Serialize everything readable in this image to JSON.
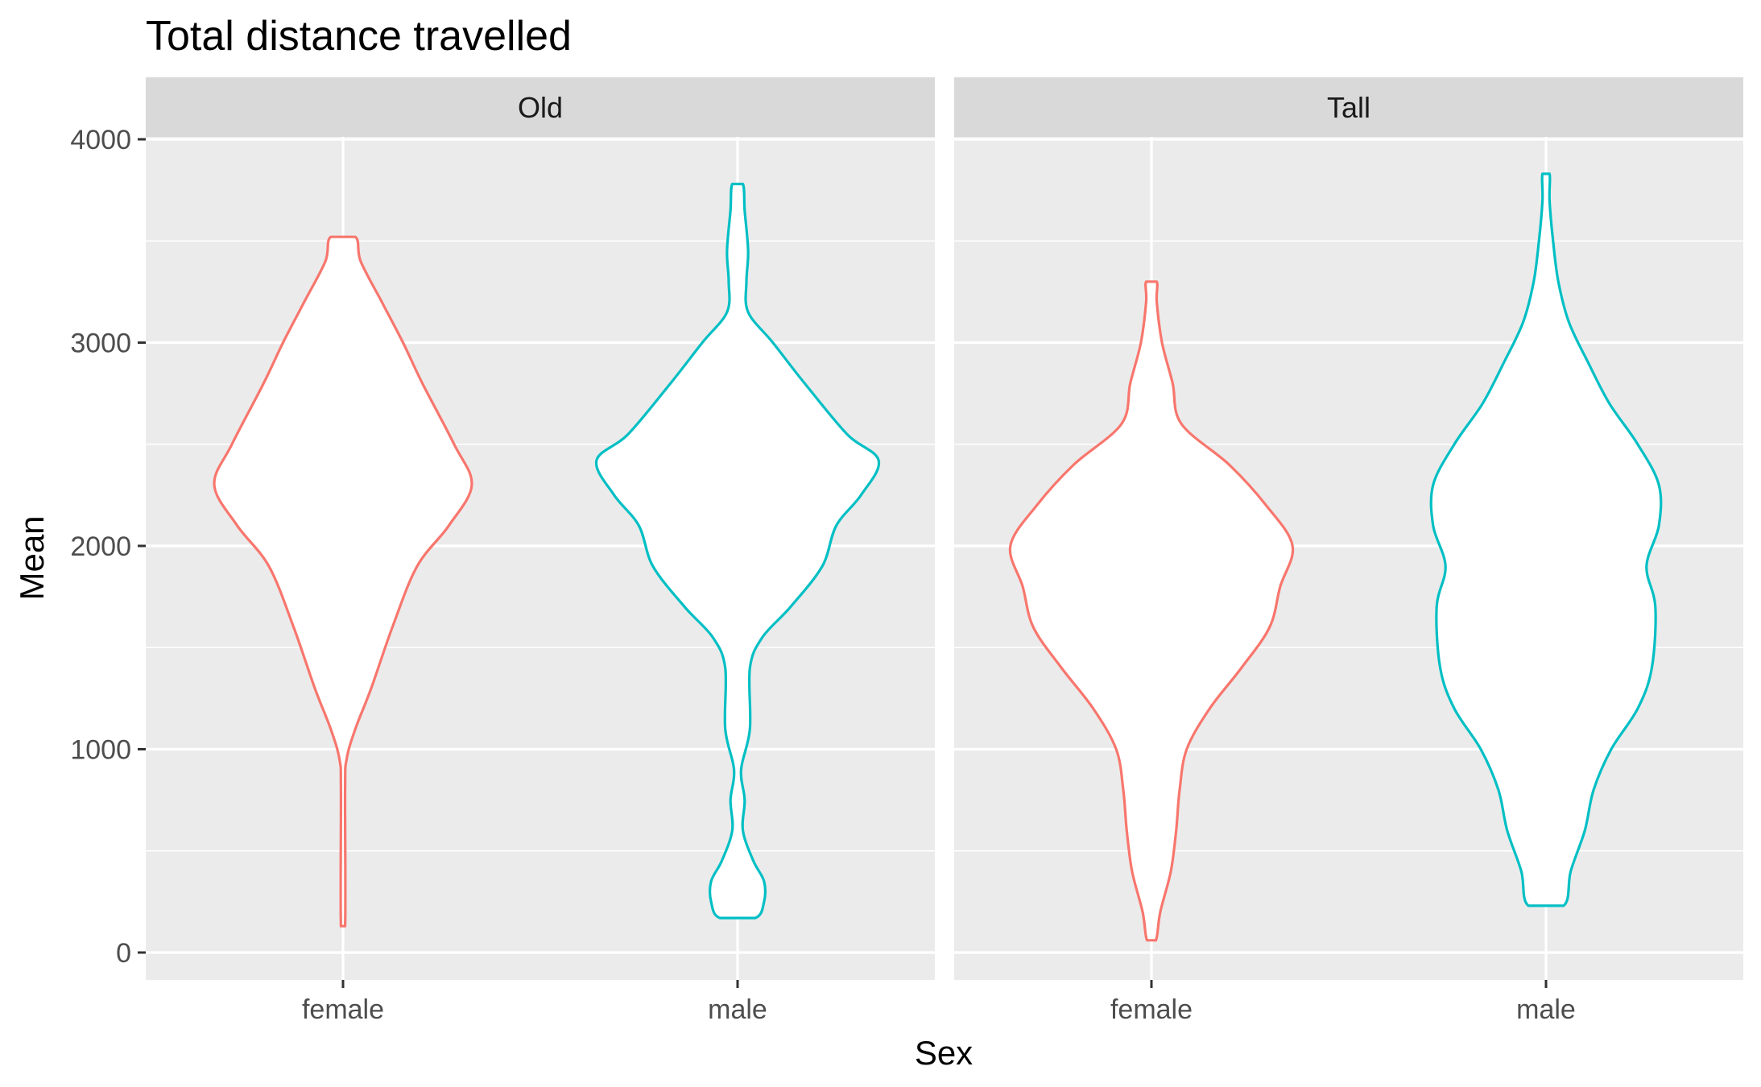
{
  "chart_data": {
    "type": "violin",
    "title": "Total distance travelled",
    "xlabel": "Sex",
    "ylabel": "Mean",
    "ylim": [
      -130,
      4000
    ],
    "yticks": [
      0,
      1000,
      2000,
      3000,
      4000
    ],
    "categories": [
      "female",
      "male"
    ],
    "grid": true,
    "legend": "none",
    "colors": {
      "female": "#F8766D",
      "male": "#00BFC4"
    },
    "panels": [
      {
        "strip": "Old",
        "violins": [
          {
            "category": "female",
            "min": 130,
            "max": 3520,
            "profile": [
              [
                130,
                0.012
              ],
              [
                800,
                0.012
              ],
              [
                950,
                0.02
              ],
              [
                1100,
                0.07
              ],
              [
                1300,
                0.16
              ],
              [
                1600,
                0.28
              ],
              [
                1900,
                0.42
              ],
              [
                2100,
                0.6
              ],
              [
                2300,
                0.73
              ],
              [
                2500,
                0.63
              ],
              [
                2800,
                0.45
              ],
              [
                3000,
                0.34
              ],
              [
                3200,
                0.22
              ],
              [
                3400,
                0.1
              ],
              [
                3520,
                0.07
              ]
            ]
          },
          {
            "category": "male",
            "min": 170,
            "max": 3780,
            "profile": [
              [
                170,
                0.1
              ],
              [
                250,
                0.15
              ],
              [
                350,
                0.15
              ],
              [
                450,
                0.09
              ],
              [
                600,
                0.03
              ],
              [
                750,
                0.04
              ],
              [
                900,
                0.02
              ],
              [
                1100,
                0.07
              ],
              [
                1400,
                0.07
              ],
              [
                1550,
                0.14
              ],
              [
                1700,
                0.3
              ],
              [
                1900,
                0.48
              ],
              [
                2100,
                0.56
              ],
              [
                2250,
                0.7
              ],
              [
                2420,
                0.8
              ],
              [
                2550,
                0.62
              ],
              [
                2800,
                0.38
              ],
              [
                3000,
                0.2
              ],
              [
                3150,
                0.06
              ],
              [
                3300,
                0.05
              ],
              [
                3450,
                0.06
              ],
              [
                3650,
                0.04
              ],
              [
                3780,
                0.03
              ]
            ]
          }
        ]
      },
      {
        "strip": "Tall",
        "violins": [
          {
            "category": "female",
            "min": 60,
            "max": 3300,
            "profile": [
              [
                60,
                0.025
              ],
              [
                200,
                0.05
              ],
              [
                400,
                0.11
              ],
              [
                600,
                0.14
              ],
              [
                800,
                0.16
              ],
              [
                1000,
                0.2
              ],
              [
                1200,
                0.33
              ],
              [
                1400,
                0.51
              ],
              [
                1600,
                0.67
              ],
              [
                1800,
                0.73
              ],
              [
                2000,
                0.8
              ],
              [
                2200,
                0.65
              ],
              [
                2400,
                0.44
              ],
              [
                2600,
                0.17
              ],
              [
                2800,
                0.12
              ],
              [
                3000,
                0.06
              ],
              [
                3200,
                0.03
              ],
              [
                3300,
                0.03
              ]
            ]
          },
          {
            "category": "male",
            "min": 230,
            "max": 3830,
            "profile": [
              [
                230,
                0.1
              ],
              [
                400,
                0.14
              ],
              [
                600,
                0.22
              ],
              [
                800,
                0.27
              ],
              [
                1000,
                0.37
              ],
              [
                1200,
                0.52
              ],
              [
                1400,
                0.6
              ],
              [
                1700,
                0.62
              ],
              [
                1900,
                0.57
              ],
              [
                2100,
                0.64
              ],
              [
                2300,
                0.64
              ],
              [
                2500,
                0.52
              ],
              [
                2700,
                0.36
              ],
              [
                2900,
                0.24
              ],
              [
                3100,
                0.13
              ],
              [
                3300,
                0.07
              ],
              [
                3500,
                0.04
              ],
              [
                3700,
                0.02
              ],
              [
                3830,
                0.02
              ]
            ]
          }
        ]
      }
    ]
  }
}
